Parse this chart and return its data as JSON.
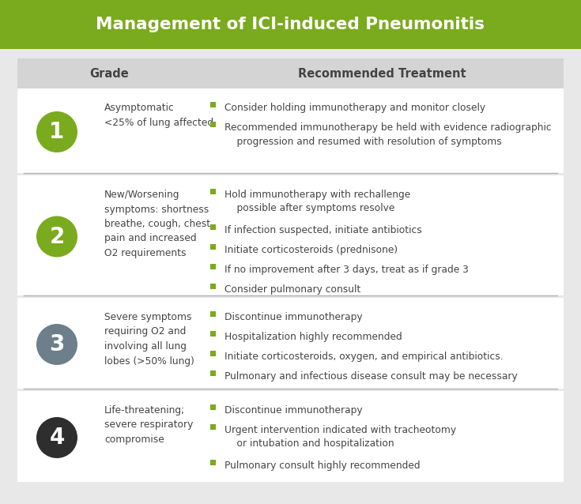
{
  "title": "Management of ICI-induced Pneumonitis",
  "title_bg": "#7aaa1e",
  "title_color": "#ffffff",
  "header_bg": "#d4d4d4",
  "header_grade": "Grade",
  "header_treatment": "Recommended Treatment",
  "outer_bg": "#e8e8e8",
  "inner_bg": "#ffffff",
  "divider_color": "#b0b0b0",
  "text_color": "#444444",
  "bullet_color": "#7aaa1e",
  "grades": [
    {
      "number": "1",
      "circle_color": "#7aaa1e",
      "description": "Asymptomatic\n<25% of lung affected",
      "treatments": [
        "Consider holding immunotherapy and monitor closely",
        "Recommended immunotherapy be held with evidence radiographic\n    progression and resumed with resolution of symptoms"
      ]
    },
    {
      "number": "2",
      "circle_color": "#7aaa1e",
      "description": "New/Worsening\nsymptoms: shortness\nbreathe, cough, chest\npain and increased\nO2 requirements",
      "treatments": [
        "Hold immunotherapy with rechallenge\n    possible after symptoms resolve",
        "If infection suspected, initiate antibiotics",
        "Initiate corticosteroids (prednisone)",
        "If no improvement after 3 days, treat as if grade 3",
        "Consider pulmonary consult"
      ]
    },
    {
      "number": "3",
      "circle_color": "#6d7f8a",
      "description": "Severe symptoms\nrequiring O2 and\ninvolving all lung\nlobes (>50% lung)",
      "treatments": [
        "Discontinue immunotherapy",
        "Hospitalization highly recommended",
        "Initiate corticosteroids, oxygen, and empirical antibiotics.",
        "Pulmonary and infectious disease consult may be necessary"
      ]
    },
    {
      "number": "4",
      "circle_color": "#2e2e2e",
      "description": "Life-threatening;\nsevere respiratory\ncompromise",
      "treatments": [
        "Discontinue immunotherapy",
        "Urgent intervention indicated with tracheotomy\n    or intubation and hospitalization",
        "Pulmonary consult highly recommended"
      ]
    }
  ]
}
